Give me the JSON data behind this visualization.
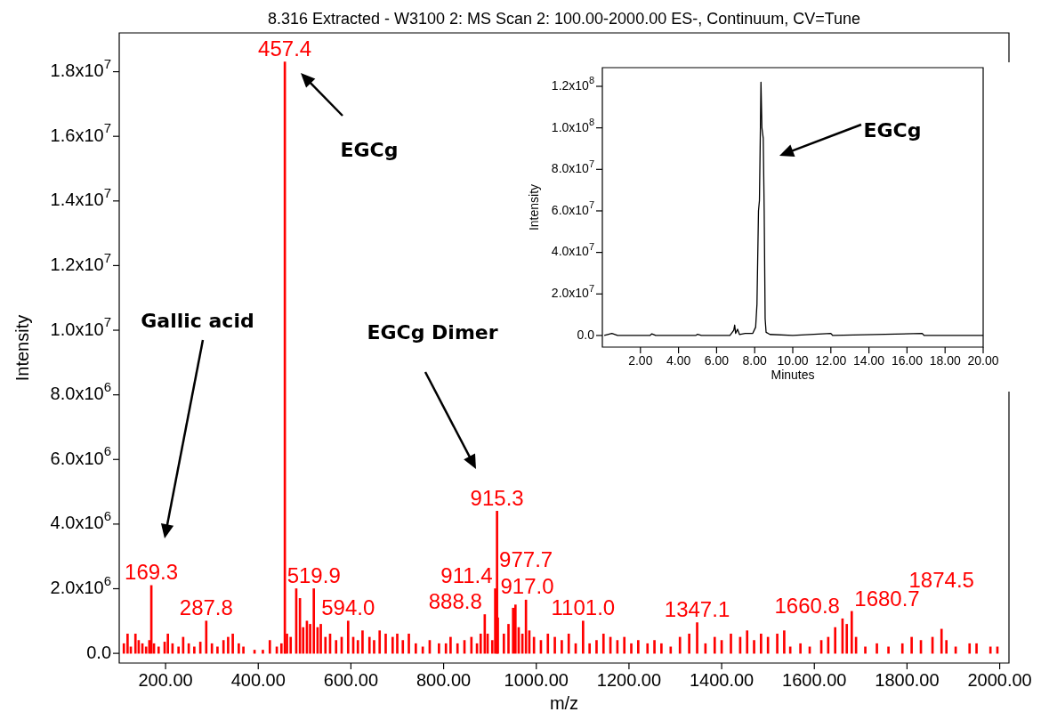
{
  "chart_data": [
    {
      "type": "bar",
      "title": "8.316 Extracted - W3100 2: MS Scan 2: 100.00-2000.00 ES-, Continuum, CV=Tune",
      "xlabel": "m/z",
      "ylabel": "Intensity",
      "color": "#ff0000",
      "x": [
        110,
        118,
        125,
        135,
        142,
        150,
        158,
        165,
        169.3,
        175,
        185,
        198,
        205,
        215,
        228,
        238,
        250,
        262,
        275,
        287.8,
        300,
        312,
        325,
        335,
        345,
        358,
        368,
        392,
        410,
        425,
        440,
        450,
        457.4,
        462,
        470,
        482,
        490,
        497,
        505,
        512,
        519.9,
        528,
        535,
        545,
        555,
        568,
        580,
        594.0,
        605,
        615,
        625,
        640,
        650,
        662,
        675,
        690,
        700,
        712,
        725,
        740,
        755,
        770,
        790,
        805,
        815,
        830,
        845,
        860,
        872,
        880,
        888.8,
        895,
        905,
        911.4,
        915.3,
        917.0,
        930,
        940,
        950,
        955,
        962,
        970,
        977.7,
        985,
        995,
        1010,
        1025,
        1040,
        1055,
        1070,
        1085,
        1101.0,
        1115,
        1130,
        1145,
        1160,
        1175,
        1190,
        1205,
        1220,
        1240,
        1255,
        1270,
        1290,
        1310,
        1330,
        1347.1,
        1365,
        1385,
        1400,
        1420,
        1440,
        1455,
        1470,
        1485,
        1500,
        1520,
        1535,
        1548,
        1570,
        1590,
        1615,
        1630,
        1645,
        1660.8,
        1670,
        1680.7,
        1690,
        1710,
        1735,
        1760,
        1790,
        1810,
        1830,
        1855,
        1874.5,
        1885,
        1905,
        1935,
        1950,
        1980,
        1995
      ],
      "values": [
        300000,
        600000,
        200000,
        600000,
        400000,
        300000,
        200000,
        400000,
        2100000,
        300000,
        200000,
        350000,
        600000,
        300000,
        200000,
        500000,
        300000,
        200000,
        350000,
        1000000,
        300000,
        200000,
        400000,
        500000,
        600000,
        300000,
        200000,
        100000,
        100000,
        400000,
        200000,
        300000,
        18300000,
        600000,
        500000,
        2000000,
        1700000,
        800000,
        1000000,
        900000,
        2000000,
        800000,
        900000,
        500000,
        600000,
        400000,
        500000,
        1000000,
        500000,
        400000,
        700000,
        500000,
        400000,
        700000,
        600000,
        500000,
        600000,
        400000,
        600000,
        300000,
        200000,
        400000,
        300000,
        300000,
        500000,
        300000,
        400000,
        500000,
        300000,
        600000,
        1200000,
        600000,
        400000,
        2000000,
        4400000,
        1100000,
        600000,
        900000,
        1400000,
        1500000,
        800000,
        600000,
        1650000,
        700000,
        500000,
        400000,
        600000,
        500000,
        400000,
        600000,
        300000,
        1000000,
        300000,
        400000,
        600000,
        500000,
        400000,
        500000,
        300000,
        400000,
        300000,
        400000,
        300000,
        200000,
        500000,
        600000,
        950000,
        300000,
        500000,
        400000,
        600000,
        500000,
        700000,
        400000,
        600000,
        500000,
        600000,
        700000,
        200000,
        300000,
        200000,
        400000,
        500000,
        800000,
        1070000,
        900000,
        1300000,
        500000,
        200000,
        300000,
        200000,
        300000,
        500000,
        400000,
        500000,
        750000,
        400000,
        200000,
        300000,
        300000,
        200000,
        200000
      ],
      "xlim": [
        100,
        2020
      ],
      "xticks": [
        {
          "value": 200,
          "label": "200.00"
        },
        {
          "value": 400,
          "label": "400.00"
        },
        {
          "value": 600,
          "label": "600.00"
        },
        {
          "value": 800,
          "label": "800.00"
        },
        {
          "value": 1000,
          "label": "1000.00"
        },
        {
          "value": 1200,
          "label": "1200.00"
        },
        {
          "value": 1400,
          "label": "1400.00"
        },
        {
          "value": 1600,
          "label": "1600.00"
        },
        {
          "value": 1800,
          "label": "1800.00"
        },
        {
          "value": 2000,
          "label": "2000.00"
        }
      ],
      "ylim": [
        -300000,
        19200000
      ],
      "yticks": [
        {
          "value": 0,
          "label": "0.0"
        },
        {
          "value": 2000000,
          "label": "2.0x10$^{6}$"
        },
        {
          "value": 4000000,
          "label": "4.0x10$^{6}$"
        },
        {
          "value": 6000000,
          "label": "6.0x10$^{6}$"
        },
        {
          "value": 8000000,
          "label": "8.0x10$^{6}$"
        },
        {
          "value": 10000000,
          "label": "1.0x10$^{7}$"
        },
        {
          "value": 12000000,
          "label": "1.2x10$^{7}$"
        },
        {
          "value": 14000000,
          "label": "1.4x10$^{7}$"
        },
        {
          "value": 16000000,
          "label": "1.6x10$^{7}$"
        },
        {
          "value": 18000000,
          "label": "1.8x10$^{7}$"
        }
      ],
      "annotations": [
        "Gallic acid",
        "EGCg",
        "EGCg Dimer",
        {
          "text": "169.3",
          "x": 169.3,
          "y": 2100000
        },
        {
          "text": "287.8",
          "x": 287.8,
          "y": 1000000
        },
        {
          "text": "457.4",
          "x": 457.4,
          "y": 18300000
        },
        {
          "text": "519.9",
          "x": 519.9,
          "y": 2000000
        },
        {
          "text": "594.0",
          "x": 594.0,
          "y": 1000000
        },
        {
          "text": "888.8",
          "x": 888.8,
          "y": 1200000
        },
        {
          "text": "911.4",
          "x": 911.4,
          "y": 2000000
        },
        {
          "text": "915.3",
          "x": 915.3,
          "y": 4400000
        },
        {
          "text": "917.0",
          "x": 917.0,
          "y": 1100000
        },
        {
          "text": "977.7",
          "x": 977.7,
          "y": 1650000
        },
        {
          "text": "1101.0",
          "x": 1101.0,
          "y": 1000000
        },
        {
          "text": "1347.1",
          "x": 1347.1,
          "y": 950000
        },
        {
          "text": "1660.8",
          "x": 1660.8,
          "y": 1070000
        },
        {
          "text": "1680.7",
          "x": 1680.7,
          "y": 1300000
        },
        {
          "text": "1874.5",
          "x": 1874.5,
          "y": 750000
        }
      ]
    },
    {
      "type": "line",
      "xlabel": "Minutes",
      "ylabel": "Intensity",
      "color": "#000000",
      "x": [
        0.1,
        0.5,
        0.8,
        2.5,
        2.6,
        2.8,
        4.9,
        5.0,
        5.2,
        6.7,
        6.9,
        6.95,
        7.0,
        7.1,
        7.2,
        7.5,
        7.9,
        8.05,
        8.12,
        8.2,
        8.25,
        8.3,
        8.33,
        8.38,
        8.45,
        8.5,
        8.55,
        8.6,
        8.8,
        10.0,
        12.0,
        12.1,
        16.8,
        16.9,
        20
      ],
      "values": [
        0,
        1000000,
        0,
        0,
        800000,
        0,
        0,
        600000,
        0,
        0,
        2500000,
        5000000,
        1000000,
        3000000,
        500000,
        1000000,
        1000000,
        4000000,
        15000000,
        60000000,
        65000000,
        100000000,
        122000000,
        100000000,
        95000000,
        60000000,
        8000000,
        1500000,
        500000,
        0,
        1000000,
        0,
        1000000,
        0,
        0
      ],
      "xlim": [
        0,
        20
      ],
      "xticks": [
        {
          "value": 2,
          "label": "2.00"
        },
        {
          "value": 4,
          "label": "4.00"
        },
        {
          "value": 6,
          "label": "6.00"
        },
        {
          "value": 8,
          "label": "8.00"
        },
        {
          "value": 10,
          "label": "10.00"
        },
        {
          "value": 12,
          "label": "12.00"
        },
        {
          "value": 14,
          "label": "14.00"
        },
        {
          "value": 16,
          "label": "16.00"
        },
        {
          "value": 18,
          "label": "18.00"
        },
        {
          "value": 20,
          "label": "20.00"
        }
      ],
      "ylim": [
        -5600000,
        129000000
      ],
      "yticks": [
        {
          "value": 0,
          "label": "0.0"
        },
        {
          "value": 20000000,
          "label": "2.0x10$^{7}$"
        },
        {
          "value": 40000000,
          "label": "4.0x10$^{7}$"
        },
        {
          "value": 60000000,
          "label": "6.0x10$^{7}$"
        },
        {
          "value": 80000000,
          "label": "8.0x10$^{7}$"
        },
        {
          "value": 100000000,
          "label": "1.0x10$^{8}$"
        },
        {
          "value": 120000000,
          "label": "1.2x10$^{8}$"
        }
      ],
      "annotations": [
        "EGCg"
      ]
    }
  ]
}
